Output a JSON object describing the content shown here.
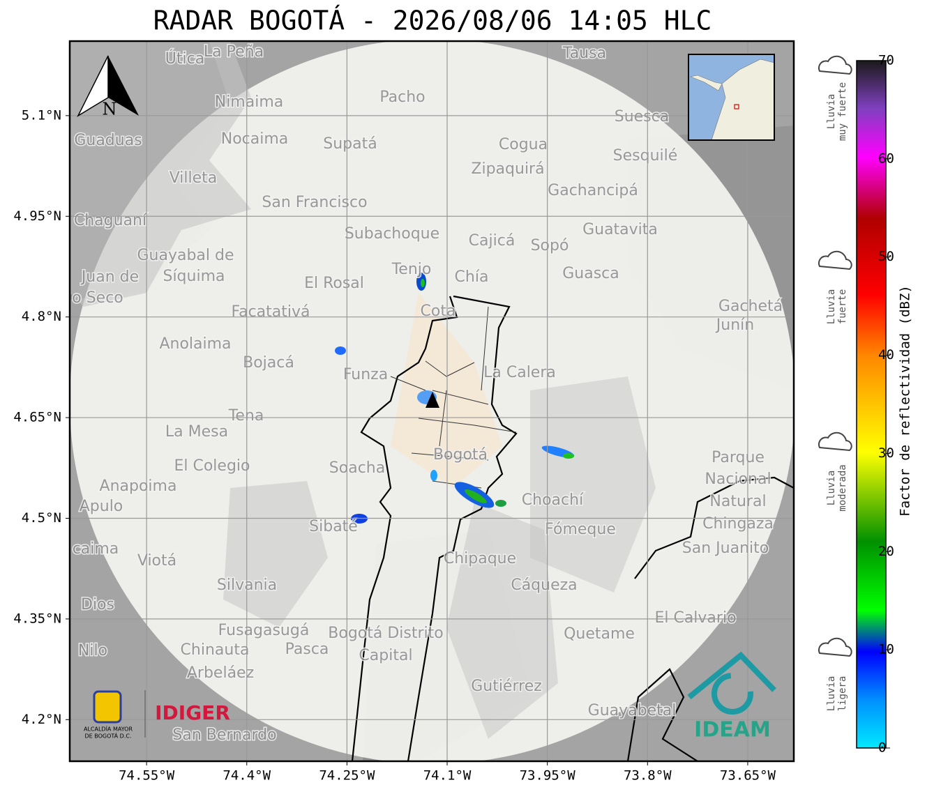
{
  "title": "RADAR BOGOTÁ - 2026/08/06 14:05 HLC",
  "map": {
    "xlim": [
      -74.665,
      -73.581
    ],
    "ylim": [
      4.138,
      5.211
    ],
    "xticks": [
      {
        "value": -74.55,
        "label": "74.55°W"
      },
      {
        "value": -74.4,
        "label": "74.4°W"
      },
      {
        "value": -74.25,
        "label": "74.25°W"
      },
      {
        "value": -74.1,
        "label": "74.1°W"
      },
      {
        "value": -73.95,
        "label": "73.95°W"
      },
      {
        "value": -73.8,
        "label": "73.8°W"
      },
      {
        "value": -73.65,
        "label": "73.65°W"
      }
    ],
    "yticks": [
      {
        "value": 5.1,
        "label": "5.1°N"
      },
      {
        "value": 4.95,
        "label": "4.95°N"
      },
      {
        "value": 4.8,
        "label": "4.8°N"
      },
      {
        "value": 4.65,
        "label": "4.65°N"
      },
      {
        "value": 4.5,
        "label": "4.5°N"
      },
      {
        "value": 4.35,
        "label": "4.35°N"
      },
      {
        "value": 4.2,
        "label": "4.2°N"
      }
    ],
    "grid": true,
    "north": "N",
    "places": [
      "La Peña",
      "Útica",
      "Tausa",
      "Pacho",
      "Nimaima",
      "Guaduas",
      "Nocaima",
      "Supatá",
      "Suesca",
      "Cogua",
      "Sesquilé",
      "Zipaquirá",
      "Villeta",
      "Gachancipá",
      "San Francisco",
      "Chaguaní",
      "Guatavita",
      "Subachoque",
      "Cajicá",
      "Sopó",
      "Guayabal de",
      "Síquima",
      "Juan de",
      "o Seco",
      "Tenjo",
      "Chía",
      "Guasca",
      "El Rosal",
      "Cota",
      "Gachetá",
      "Junín",
      "Facatativá",
      "Anolaima",
      "Bojacá",
      "Funza",
      "La Calera",
      "Tena",
      "La Mesa",
      "Bogotá",
      "Parque",
      "Nacional",
      "Natural",
      "Chingaza",
      "El Colegio",
      "Soacha",
      "Anapoima",
      "Apulo",
      "Choachí",
      "Sibaté",
      "Fómeque",
      "San Juanito",
      "caima",
      "Viotá",
      "Chipaque",
      "Silvania",
      "Cáqueza",
      "Dios",
      "El Calvario",
      "Fusagasugá",
      "Bogotá Distrito",
      "Capital",
      "Quetame",
      "Nilo",
      "Chinauta",
      "Pasca",
      "Arbeláez",
      "Gutiérrez",
      "Guayabetal",
      "San Bernardo"
    ]
  },
  "colorbar": {
    "label": "Factor de reflectividad (dBZ)",
    "lim": [
      0,
      70
    ],
    "ticks": [
      0,
      10,
      20,
      30,
      40,
      50,
      60,
      70
    ],
    "intensity": [
      [
        "Lluvia",
        "muy fuerte"
      ],
      [
        "Lluvia",
        "fuerte"
      ],
      [
        "Lluvia",
        "moderada"
      ],
      [
        "Lluvia",
        "ligera"
      ]
    ]
  },
  "logos": {
    "alcaldia": [
      "ALCALDÍA MAYOR",
      "DE BOGOTÁ D.C."
    ],
    "idiger": "IDIGER",
    "ideam": "IDEAM"
  }
}
